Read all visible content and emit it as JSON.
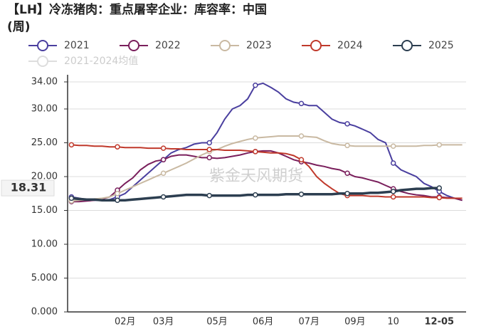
{
  "chart_data": {
    "type": "line",
    "title": "【LH】冷冻猪肉：重点屠宰企业：库容率：中国",
    "subtitle": "(周)",
    "watermark": "紫金天风期货",
    "categories": [
      null,
      null,
      null,
      null,
      null,
      null,
      null,
      "02月",
      null,
      null,
      null,
      null,
      "03月",
      null,
      null,
      null,
      null,
      null,
      null,
      "05月",
      null,
      null,
      null,
      null,
      null,
      "06月",
      null,
      null,
      null,
      null,
      null,
      "07月",
      null,
      null,
      null,
      null,
      null,
      "09月",
      null,
      null,
      null,
      null,
      "10",
      null,
      null,
      null,
      null,
      null,
      "12-05",
      null,
      null,
      null
    ],
    "ylim": [
      0,
      34
    ],
    "yticks": [
      {
        "value": 0,
        "label": "0.000"
      },
      {
        "value": 5,
        "label": "5.000"
      },
      {
        "value": 10,
        "label": "10.00"
      },
      {
        "value": 15,
        "label": "15.00"
      },
      {
        "value": 20,
        "label": "20.00"
      },
      {
        "value": 25,
        "label": "25.00"
      },
      {
        "value": 30,
        "label": "30.00"
      },
      {
        "value": 34,
        "label": "34.00"
      }
    ],
    "grid": true,
    "y_marker": {
      "value": 18.31,
      "label": "18.31"
    },
    "series": [
      {
        "name": "2021",
        "color": "#4a3f9f",
        "values": [
          17,
          16.8,
          16.6,
          16.5,
          16.5,
          16.6,
          17,
          17.5,
          18.5,
          19.5,
          20.5,
          21.5,
          22.5,
          23.5,
          24,
          24.3,
          24.8,
          25,
          25,
          26.5,
          28.5,
          30,
          30.5,
          31.5,
          33.5,
          33.8,
          33.2,
          32.5,
          31.5,
          31,
          30.8,
          30.5,
          30.5,
          29.5,
          28.5,
          28,
          27.8,
          27.5,
          27,
          26.5,
          25.5,
          25,
          22,
          21,
          20.5,
          20,
          19,
          18.5,
          17.8,
          17.2,
          16.8,
          16.5
        ]
      },
      {
        "name": "2022",
        "color": "#7a1f5c",
        "values": [
          16.3,
          16.3,
          16.4,
          16.5,
          16.7,
          17,
          18,
          19,
          19.8,
          21,
          21.8,
          22.3,
          22.5,
          23,
          23.2,
          23.2,
          23,
          22.8,
          22.8,
          22.7,
          22.8,
          23,
          23.2,
          23.5,
          23.7,
          23.8,
          23.8,
          23.5,
          23,
          22.5,
          22.2,
          22,
          21.7,
          21.5,
          21.2,
          21,
          20.5,
          20,
          19.8,
          19.5,
          19.2,
          18.7,
          18.2,
          17.8,
          17.5,
          17.3,
          17.2,
          17,
          17,
          16.9,
          16.8,
          16.5
        ]
      },
      {
        "name": "2023",
        "color": "#c9b9a2",
        "values": [
          16.4,
          16.5,
          16.6,
          16.7,
          16.8,
          17,
          17.5,
          18,
          18.5,
          19,
          19.5,
          20,
          20.5,
          21,
          21.5,
          22,
          22.6,
          23.2,
          23.7,
          24,
          24.5,
          24.9,
          25.2,
          25.5,
          25.7,
          25.8,
          25.9,
          26,
          26,
          26,
          26,
          25.9,
          25.8,
          25.3,
          24.9,
          24.7,
          24.6,
          24.5,
          24.5,
          24.5,
          24.5,
          24.5,
          24.5,
          24.5,
          24.5,
          24.5,
          24.6,
          24.6,
          24.7,
          24.7,
          24.7,
          24.7
        ]
      },
      {
        "name": "2024",
        "color": "#c0392b",
        "values": [
          24.7,
          24.6,
          24.6,
          24.5,
          24.5,
          24.4,
          24.4,
          24.3,
          24.3,
          24.3,
          24.2,
          24.2,
          24.2,
          24.1,
          24.1,
          24,
          24,
          24,
          24,
          24,
          23.9,
          23.9,
          23.9,
          23.8,
          23.7,
          23.6,
          23.5,
          23.5,
          23.4,
          23.1,
          22.5,
          21.5,
          20,
          19,
          18.2,
          17.5,
          17.2,
          17.2,
          17.2,
          17.1,
          17.1,
          17,
          17,
          17,
          17,
          17,
          17,
          16.9,
          16.9,
          16.8,
          16.8,
          16.8
        ]
      },
      {
        "name": "2025",
        "color": "#2c3e50",
        "values": [
          16.8,
          16.7,
          16.6,
          16.6,
          16.5,
          16.5,
          16.5,
          16.5,
          16.6,
          16.7,
          16.8,
          16.9,
          17,
          17.1,
          17.2,
          17.3,
          17.3,
          17.3,
          17.2,
          17.2,
          17.2,
          17.2,
          17.2,
          17.3,
          17.3,
          17.3,
          17.3,
          17.3,
          17.4,
          17.4,
          17.4,
          17.4,
          17.4,
          17.4,
          17.4,
          17.5,
          17.5,
          17.5,
          17.5,
          17.6,
          17.6,
          17.7,
          17.8,
          18,
          18.1,
          18.2,
          18.2,
          18.3,
          18.31,
          null,
          null,
          null
        ]
      },
      {
        "name": "2021-2024均值",
        "color": "#cccccc",
        "visible": false
      }
    ]
  }
}
